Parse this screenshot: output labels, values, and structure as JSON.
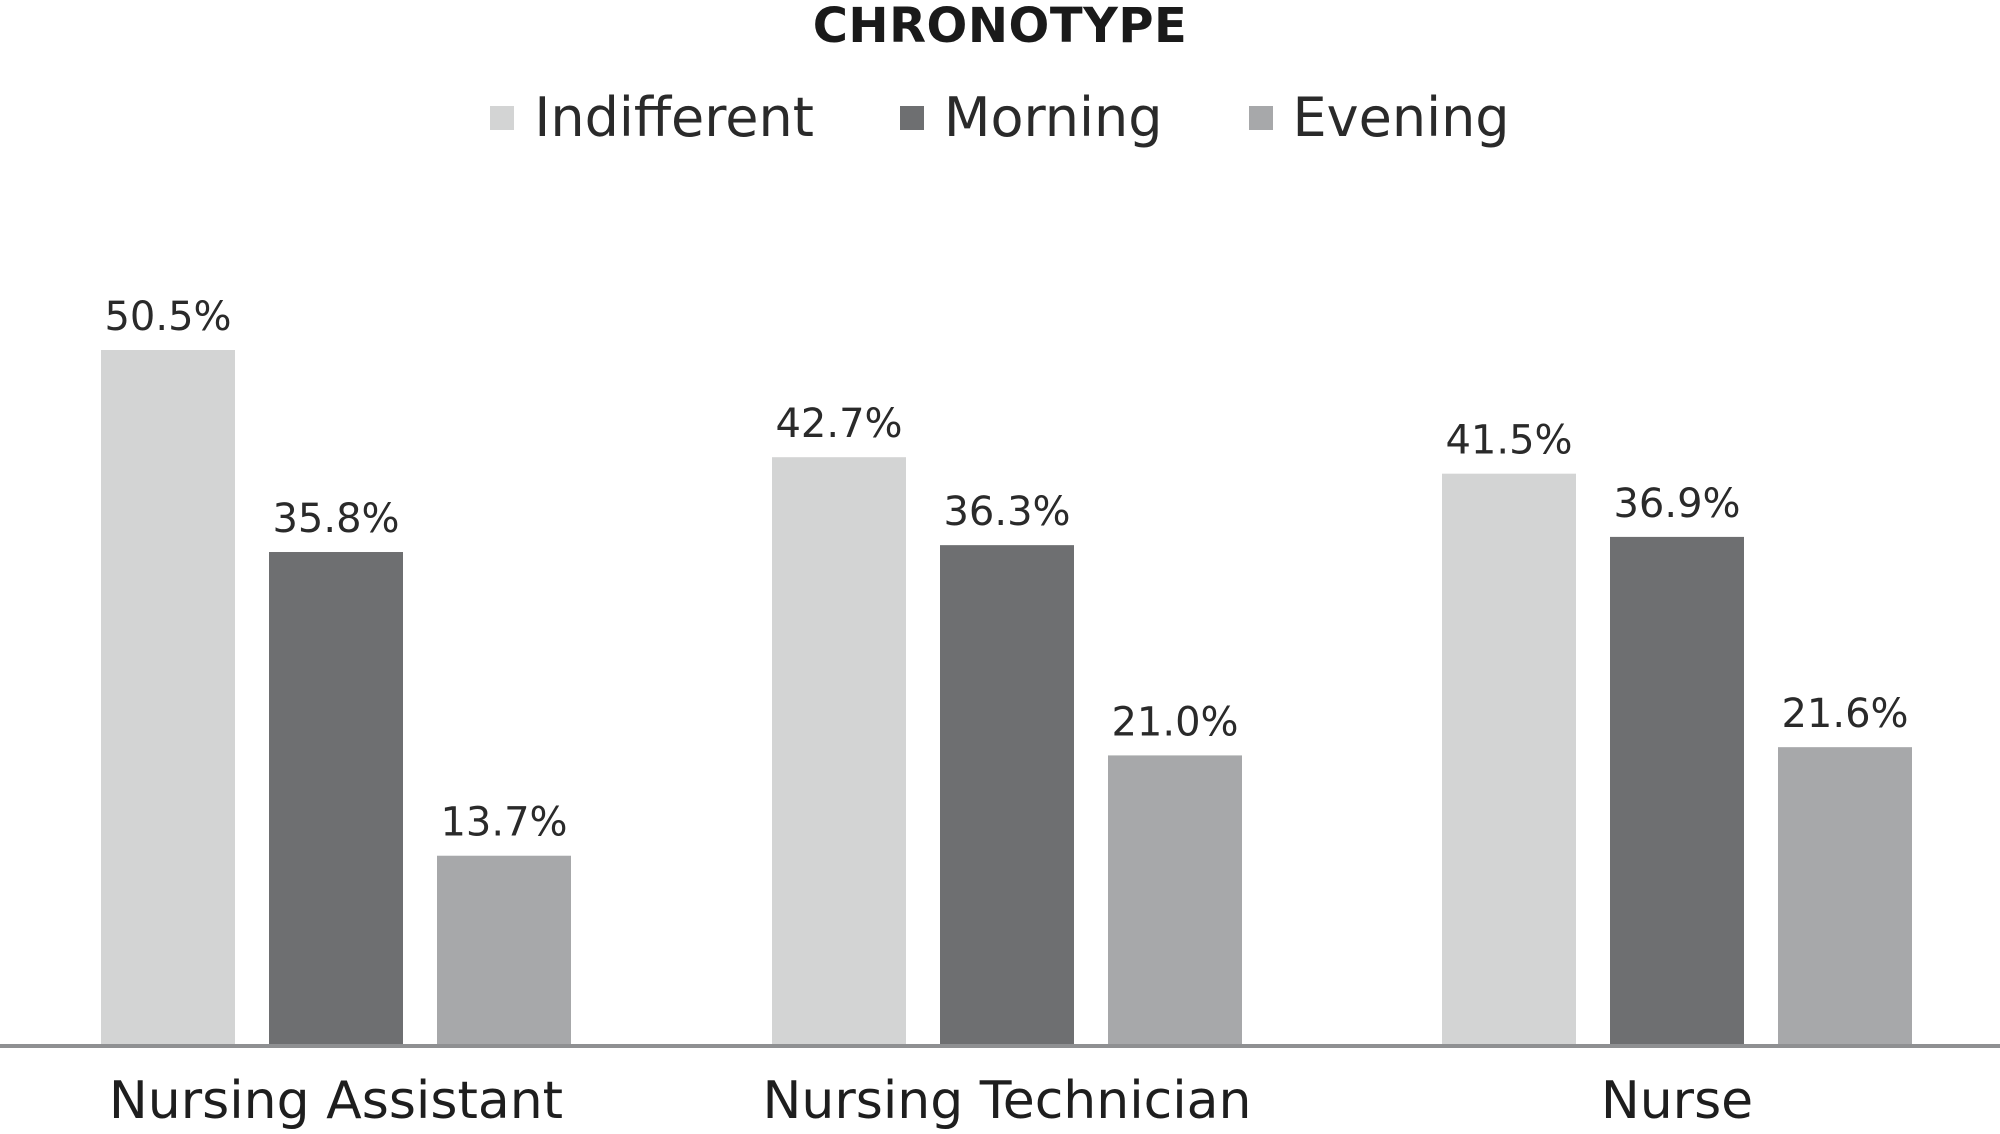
{
  "chart_data": {
    "type": "bar",
    "title": "CHRONOTYPE",
    "categories": [
      "Nursing Assistant",
      "Nursing Technician",
      "Nurse"
    ],
    "series": [
      {
        "name": "Indifferent",
        "color": "#d3d4d4",
        "values": [
          50.5,
          42.7,
          41.5
        ],
        "labels": [
          "50.5%",
          "42.7%",
          "41.5%"
        ]
      },
      {
        "name": "Morning",
        "color": "#6e6f71",
        "values": [
          35.8,
          36.3,
          36.9
        ],
        "labels": [
          "35.8%",
          "36.3%",
          "36.9%"
        ]
      },
      {
        "name": "Evening",
        "color": "#a7a8aa",
        "values": [
          13.7,
          21.0,
          21.6
        ],
        "labels": [
          "13.7%",
          "21.0%",
          "21.6%"
        ]
      }
    ],
    "ylim": [
      0,
      50.5
    ],
    "grid": false,
    "legend": "top-center",
    "axis_color": "#8f9092"
  }
}
